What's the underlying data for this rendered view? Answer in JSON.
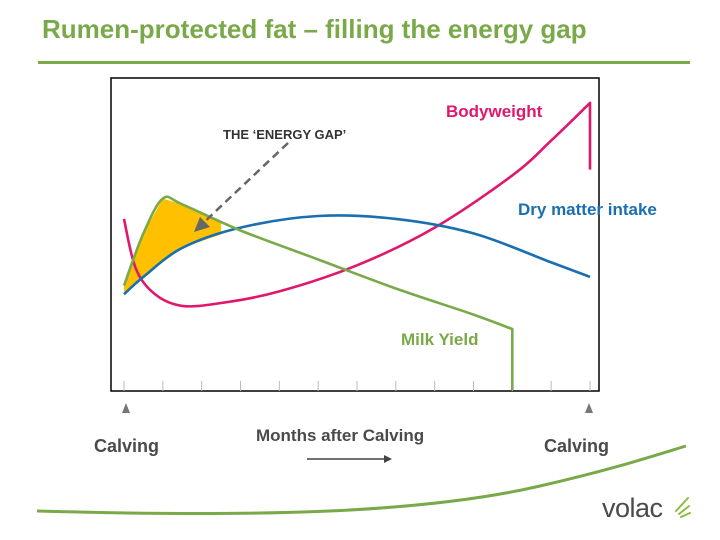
{
  "title": "Rumen-protected fat – filling the energy gap",
  "logo_text": "volac",
  "colors": {
    "green": "#7aa94a",
    "pink": "#e0186c",
    "blue": "#1a6fb0",
    "gap_fill": "#ffc000",
    "arrow": "#666666"
  },
  "chart_data": {
    "type": "line",
    "title": "",
    "xlabel": "Months after Calving",
    "ylabel": "",
    "x_start_label": "Calving",
    "x_end_label": "Calving",
    "x_range": [
      0,
      12
    ],
    "y_range": [
      0,
      100
    ],
    "annotations": [
      {
        "text": "THE ‘ENERGY GAP’"
      }
    ],
    "series": [
      {
        "name": "Bodyweight",
        "color": "#e0186c",
        "points": [
          [
            0,
            59
          ],
          [
            0.3,
            42
          ],
          [
            0.8,
            33
          ],
          [
            1.5,
            29
          ],
          [
            2.5,
            30
          ],
          [
            4,
            34
          ],
          [
            6,
            43
          ],
          [
            8,
            56
          ],
          [
            10,
            74
          ],
          [
            11,
            86
          ],
          [
            12,
            99
          ],
          [
            12,
            76
          ]
        ]
      },
      {
        "name": "Dry matter intake",
        "color": "#1a6fb0",
        "points": [
          [
            0,
            33
          ],
          [
            0.5,
            39
          ],
          [
            1.5,
            49
          ],
          [
            3,
            56
          ],
          [
            5,
            60
          ],
          [
            7,
            59
          ],
          [
            9,
            54
          ],
          [
            11,
            44
          ],
          [
            12,
            39
          ]
        ]
      },
      {
        "name": "Milk Yield",
        "color": "#7aa94a",
        "points": [
          [
            0,
            36
          ],
          [
            0.5,
            54
          ],
          [
            1,
            66
          ],
          [
            1.5,
            64
          ],
          [
            3,
            55
          ],
          [
            5,
            45
          ],
          [
            7,
            35
          ],
          [
            9,
            26
          ],
          [
            10,
            21
          ],
          [
            10,
            0
          ]
        ]
      }
    ]
  }
}
